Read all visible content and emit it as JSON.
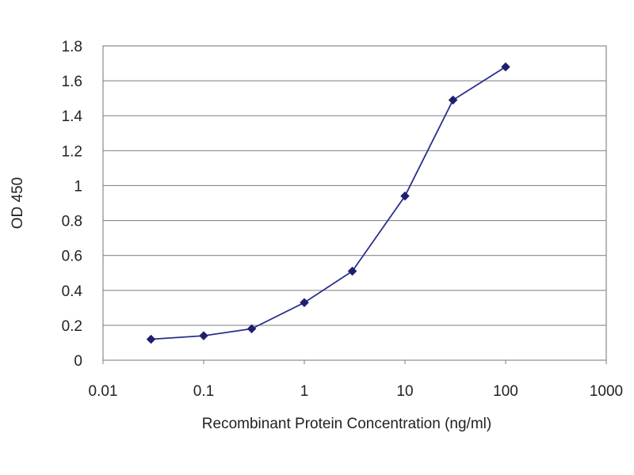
{
  "chart_data": {
    "type": "line",
    "title": "",
    "xlabel": "Recombinant Protein Concentration (ng/ml)",
    "ylabel": "OD 450",
    "x_scale": "log",
    "xlim": [
      0.01,
      1000
    ],
    "ylim": [
      0,
      1.8
    ],
    "x_ticks": [
      "0.01",
      "0.1",
      "1",
      "10",
      "100",
      "1000"
    ],
    "y_ticks": [
      "0",
      "0.2",
      "0.4",
      "0.6",
      "0.8",
      "1",
      "1.2",
      "1.4",
      "1.6",
      "1.8"
    ],
    "grid": "horizontal",
    "legend": "none",
    "series": [
      {
        "x": [
          0.03,
          0.1,
          0.3,
          1,
          3,
          10,
          30,
          100
        ],
        "values": [
          0.12,
          0.14,
          0.18,
          0.33,
          0.51,
          0.94,
          1.49,
          1.68
        ],
        "color": "#2b2f8c",
        "marker": "diamond"
      }
    ]
  }
}
